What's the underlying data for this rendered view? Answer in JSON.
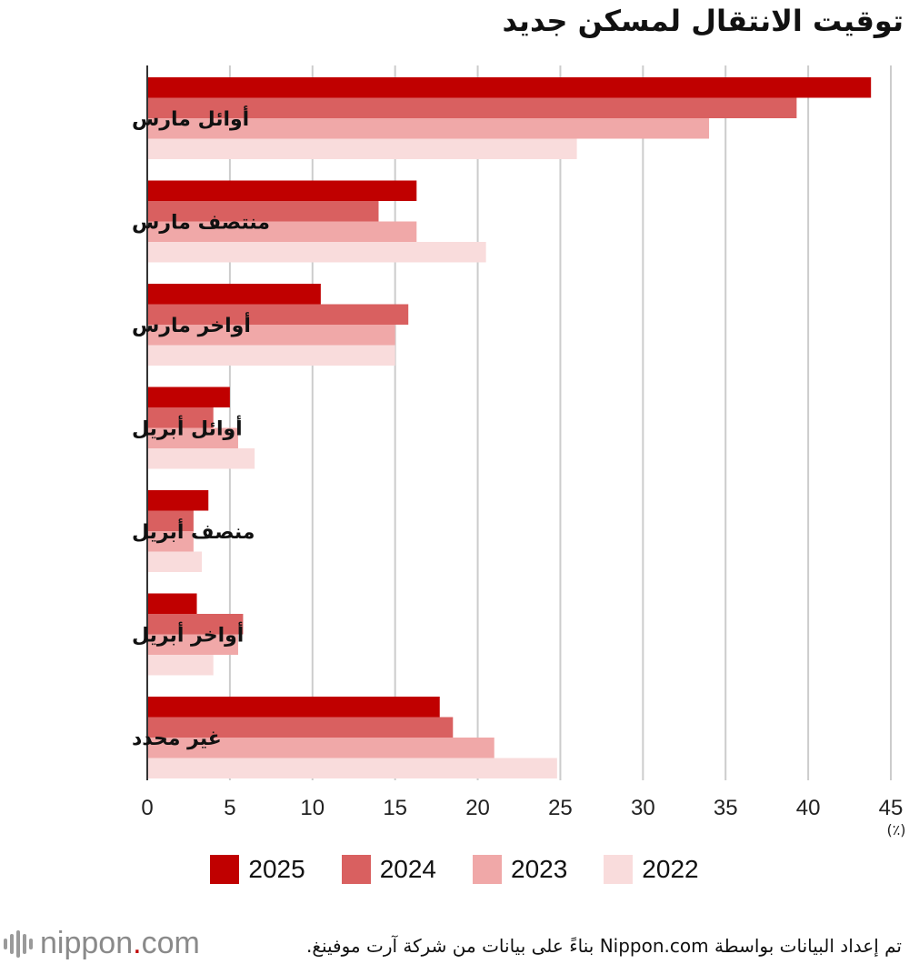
{
  "chart_data": {
    "type": "bar",
    "orientation": "horizontal",
    "title": "توقيت الانتقال لمسكن جديد",
    "categories": [
      "أوائل مارس",
      "منتصف مارس",
      "أواخر مارس",
      "أوائل أبريل",
      "منصف أبريل",
      "أواخر أبريل",
      "غير محدد"
    ],
    "series": [
      {
        "name": "2025",
        "color": "#c00000",
        "values": [
          43.8,
          16.3,
          10.5,
          5.0,
          3.7,
          3.0,
          17.7
        ]
      },
      {
        "name": "2024",
        "color": "#d96060",
        "values": [
          39.3,
          14.0,
          15.8,
          4.0,
          2.8,
          5.8,
          18.5
        ]
      },
      {
        "name": "2023",
        "color": "#f0a8a8",
        "values": [
          34.0,
          16.3,
          15.0,
          5.5,
          2.8,
          5.5,
          21.0
        ]
      },
      {
        "name": "2022",
        "color": "#f9dcdc",
        "values": [
          26.0,
          20.5,
          15.0,
          6.5,
          3.3,
          4.0,
          24.8
        ]
      }
    ],
    "xlim": [
      0,
      45
    ],
    "xticks": [
      0,
      5,
      10,
      15,
      20,
      25,
      30,
      35,
      40,
      45
    ],
    "unit_label": "(٪)",
    "grid": true,
    "legend_position": "bottom"
  },
  "footer": {
    "logo_text": "nippon",
    "logo_dot": ".",
    "logo_suffix": "com",
    "source": "تم إعداد البيانات بواسطة Nippon.com بناءً على بيانات من شركة آرت موفينغ."
  }
}
